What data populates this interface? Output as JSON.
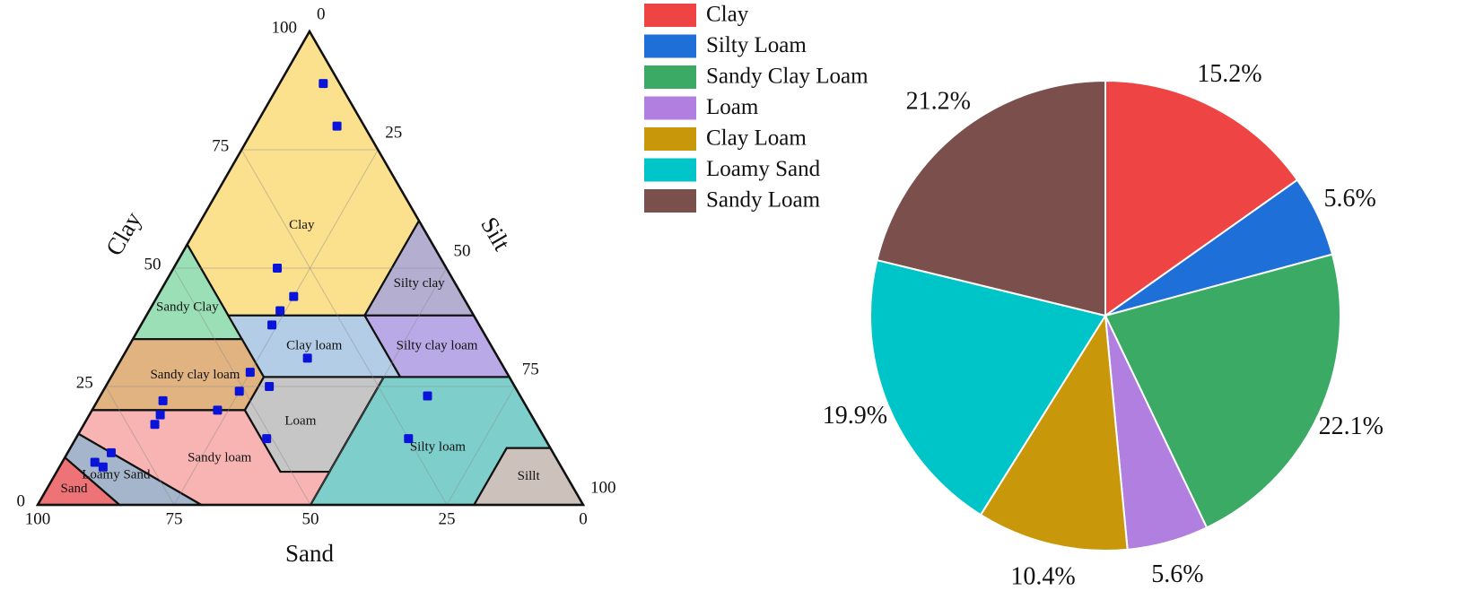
{
  "chart_data": [
    {
      "type": "ternary",
      "axes": {
        "clay": {
          "title": "Clay",
          "ticks": [
            0,
            25,
            50,
            75,
            100
          ]
        },
        "silt": {
          "title": "Silt",
          "ticks": [
            0,
            25,
            50,
            75,
            100
          ]
        },
        "sand": {
          "title": "Sand",
          "ticks": [
            100,
            75,
            50,
            25,
            0
          ]
        }
      },
      "grid": true,
      "regions": [
        {
          "name": "Clay",
          "color": "#fbe08e",
          "sand": [
            0,
            0,
            20,
            45,
            45
          ],
          "clay": [
            100,
            60,
            40,
            40,
            55
          ]
        },
        {
          "name": "Silty clay",
          "color": "#b4aed0",
          "sand": [
            0,
            0,
            20
          ],
          "clay": [
            60,
            40,
            40
          ]
        },
        {
          "name": "Sandy Clay",
          "color": "#9adfb5",
          "sand": [
            45,
            45,
            65
          ],
          "clay": [
            55,
            35,
            35
          ]
        },
        {
          "name": "Silty clay loam",
          "color": "#b9a9e6",
          "sand": [
            0,
            0,
            20,
            20
          ],
          "clay": [
            40,
            27,
            27,
            40
          ]
        },
        {
          "name": "Clay loam",
          "color": "#b3cde6",
          "sand": [
            20,
            20,
            45,
            45
          ],
          "clay": [
            40,
            27,
            27,
            40
          ]
        },
        {
          "name": "Sandy clay loam",
          "color": "#e1b381",
          "sand": [
            65,
            45,
            45,
            52,
            80
          ],
          "clay": [
            35,
            35,
            27,
            20,
            20
          ]
        },
        {
          "name": "Loam",
          "color": "#c6c6c6",
          "sand": [
            23,
            45,
            52,
            52,
            43
          ],
          "clay": [
            27,
            27,
            20,
            7,
            7
          ]
        },
        {
          "name": "Silty loam",
          "color": "#7ecfcc",
          "sand": [
            0,
            23,
            43,
            50,
            20,
            8,
            0
          ],
          "clay": [
            27,
            27,
            7,
            0,
            0,
            12,
            12
          ]
        },
        {
          "name": "Sillt",
          "color": "#cdc1bc",
          "sand": [
            0,
            8,
            20,
            0
          ],
          "clay": [
            12,
            12,
            0,
            0
          ]
        },
        {
          "name": "Sandy loam",
          "color": "#f8b3b3",
          "sand": [
            80,
            52,
            52,
            43,
            50,
            70,
            85
          ],
          "clay": [
            20,
            20,
            7,
            7,
            0,
            0,
            15
          ]
        },
        {
          "name": "Loamy Sand",
          "color": "#a5b5cc",
          "sand": [
            90,
            85,
            70,
            85
          ],
          "clay": [
            10,
            15,
            0,
            0
          ]
        },
        {
          "name": "Sand",
          "color": "#ee7377",
          "sand": [
            90,
            85,
            100
          ],
          "clay": [
            10,
            0,
            0
          ]
        }
      ],
      "points": {
        "color": "#0a14d8",
        "clay": [
          89,
          80,
          50,
          44,
          41,
          38,
          31,
          28,
          25,
          24,
          22,
          20,
          19,
          17,
          23,
          14,
          14,
          11,
          9,
          8
        ],
        "sand": [
          3,
          5,
          31,
          31,
          35,
          38,
          35,
          47,
          45,
          51,
          66,
          57,
          68,
          70,
          17,
          25,
          51,
          81,
          85,
          84
        ]
      }
    },
    {
      "type": "pie",
      "categories": [
        "Clay",
        "Silty Loam",
        "Sandy Clay Loam",
        "Loam",
        "Clay Loam",
        "Loamy Sand",
        "Sandy Loam"
      ],
      "values": [
        15.2,
        5.6,
        22.1,
        5.6,
        10.4,
        19.9,
        21.2
      ],
      "value_labels": [
        "15.2%",
        "5.6%",
        "22.1%",
        "5.6%",
        "10.4%",
        "19.9%",
        "21.2%"
      ],
      "colors": [
        "#ee4444",
        "#1f6fd9",
        "#3aaa64",
        "#b07fe0",
        "#c9980a",
        "#00c5c8",
        "#7b4f4c"
      ],
      "legend": "upper left"
    }
  ]
}
